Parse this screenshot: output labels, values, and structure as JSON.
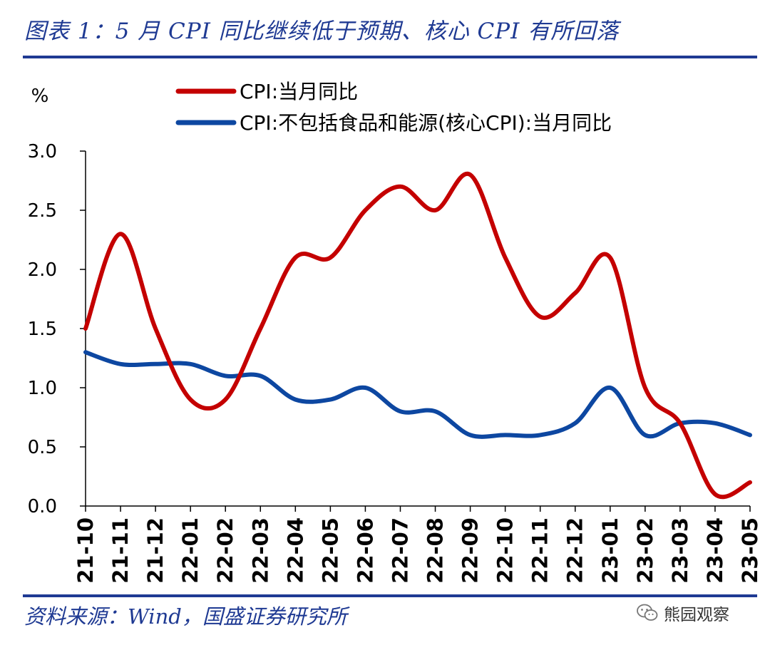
{
  "header": {
    "title": "图表 1：5 月 CPI 同比继续低于预期、核心 CPI 有所回落"
  },
  "footer": {
    "source": "资料来源：Wind，国盛证券研究所",
    "watermark_text": "熊园观察",
    "watermark_icon": "wechat-icon"
  },
  "colors": {
    "accent": "#1f3a93",
    "cpi_line": "#c40000",
    "core_cpi_line": "#0d47a1"
  },
  "chart_data": {
    "type": "line",
    "ylabel": "%",
    "ylim": [
      0,
      3
    ],
    "yticks": [
      "0.0",
      "0.5",
      "1.0",
      "1.5",
      "2.0",
      "2.5",
      "3.0"
    ],
    "grid": false,
    "legend_position": "top",
    "categories": [
      "21-10",
      "21-11",
      "21-12",
      "22-01",
      "22-02",
      "22-03",
      "22-04",
      "22-05",
      "22-06",
      "22-07",
      "22-08",
      "22-09",
      "22-10",
      "22-11",
      "22-12",
      "23-01",
      "23-02",
      "23-03",
      "23-04",
      "23-05"
    ],
    "series": [
      {
        "name": "CPI:当月同比",
        "color": "#c40000",
        "values": [
          1.5,
          2.3,
          1.5,
          0.9,
          0.9,
          1.5,
          2.1,
          2.1,
          2.5,
          2.7,
          2.5,
          2.8,
          2.1,
          1.6,
          1.8,
          2.1,
          1.0,
          0.7,
          0.1,
          0.2
        ]
      },
      {
        "name": "CPI:不包括食品和能源(核心CPI):当月同比",
        "color": "#0d47a1",
        "values": [
          1.3,
          1.2,
          1.2,
          1.2,
          1.1,
          1.1,
          0.9,
          0.9,
          1.0,
          0.8,
          0.8,
          0.6,
          0.6,
          0.6,
          0.7,
          1.0,
          0.6,
          0.7,
          0.7,
          0.6
        ]
      }
    ]
  }
}
